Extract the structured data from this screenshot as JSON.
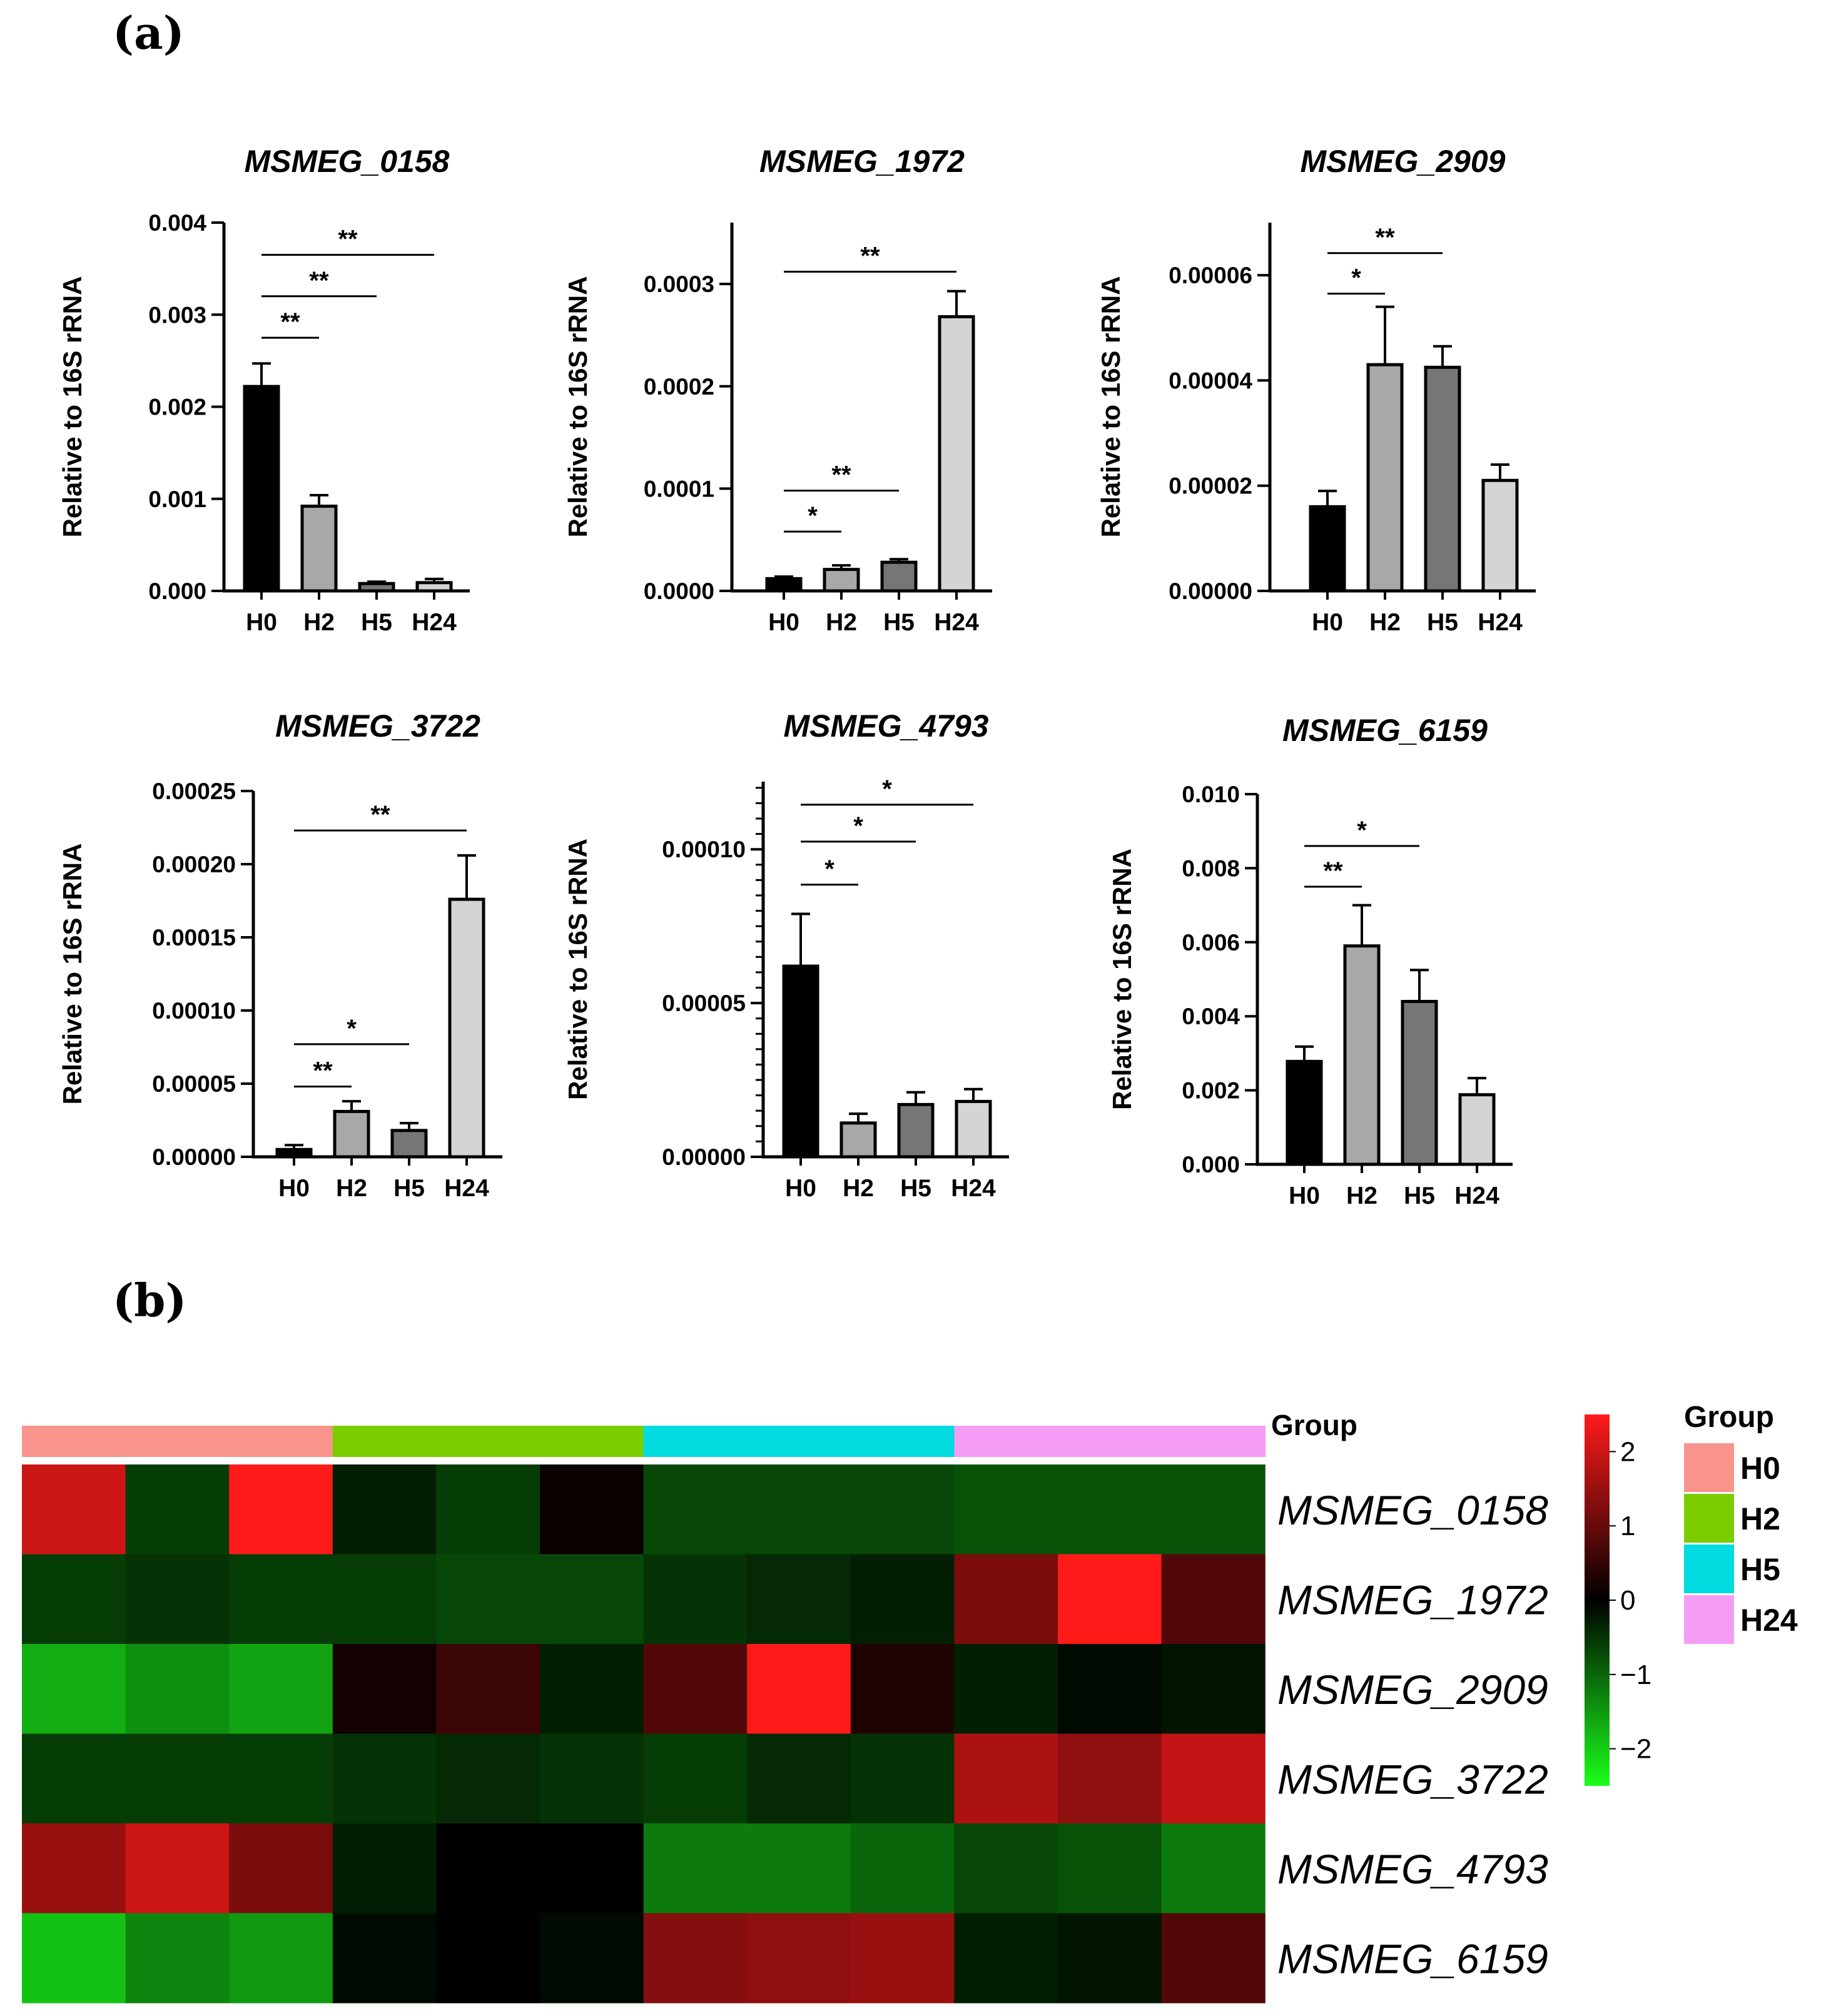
{
  "panel_labels": {
    "a": "(a)",
    "b": "(b)"
  },
  "chart_data": [
    {
      "type": "bar",
      "title": "MSMEG_0158",
      "ylabel": "Relative to 16S rRNA",
      "categories": [
        "H0",
        "H2",
        "H5",
        "H24"
      ],
      "values": [
        0.00222,
        0.00092,
        8e-05,
        9e-05
      ],
      "errors": [
        0.00025,
        0.00012,
        2e-05,
        4e-05
      ],
      "ylim": [
        0,
        0.004
      ],
      "yticks": [
        0,
        0.001,
        0.002,
        0.003,
        0.004
      ],
      "ytick_labels": [
        "0.000",
        "0.001",
        "0.002",
        "0.003",
        "0.004"
      ],
      "minor_ticks": false,
      "bar_colors": [
        "#000000",
        "#a8a8a8",
        "#767676",
        "#d4d4d4"
      ],
      "significance": [
        {
          "from": "H0",
          "to": "H2",
          "label": "**",
          "y": 0.00275
        },
        {
          "from": "H0",
          "to": "H5",
          "label": "**",
          "y": 0.0032
        },
        {
          "from": "H0",
          "to": "H24",
          "label": "**",
          "y": 0.00365
        }
      ]
    },
    {
      "type": "bar",
      "title": "MSMEG_1972",
      "ylabel": "Relative to 16S rRNA",
      "categories": [
        "H0",
        "H2",
        "H5",
        "H24"
      ],
      "values": [
        1.2e-05,
        2.1e-05,
        2.8e-05,
        0.000268
      ],
      "errors": [
        2e-06,
        4e-06,
        3e-06,
        2.5e-05
      ],
      "ylim": [
        0,
        0.00036
      ],
      "yticks": [
        0,
        0.0001,
        0.0002,
        0.0003
      ],
      "ytick_labels": [
        "0.0000",
        "0.0001",
        "0.0002",
        "0.0003"
      ],
      "minor_ticks": false,
      "bar_colors": [
        "#000000",
        "#a8a8a8",
        "#767676",
        "#d4d4d4"
      ],
      "significance": [
        {
          "from": "H0",
          "to": "H2",
          "label": "*",
          "y": 5.8e-05
        },
        {
          "from": "H0",
          "to": "H5",
          "label": "**",
          "y": 9.8e-05
        },
        {
          "from": "H0",
          "to": "H24",
          "label": "**",
          "y": 0.000312
        }
      ]
    },
    {
      "type": "bar",
      "title": "MSMEG_2909",
      "ylabel": "Relative to 16S rRNA",
      "categories": [
        "H0",
        "H2",
        "H5",
        "H24"
      ],
      "values": [
        1.6e-05,
        4.3e-05,
        4.25e-05,
        2.1e-05
      ],
      "errors": [
        3e-06,
        1.1e-05,
        4e-06,
        3e-06
      ],
      "ylim": [
        0,
        7e-05
      ],
      "yticks": [
        0,
        2e-05,
        4e-05,
        6e-05
      ],
      "ytick_labels": [
        "0.00000",
        "0.00002",
        "0.00004",
        "0.00006"
      ],
      "minor_ticks": false,
      "bar_colors": [
        "#000000",
        "#a8a8a8",
        "#767676",
        "#d4d4d4"
      ],
      "significance": [
        {
          "from": "H0",
          "to": "H2",
          "label": "*",
          "y": 5.65e-05
        },
        {
          "from": "H0",
          "to": "H5",
          "label": "**",
          "y": 6.42e-05
        }
      ]
    },
    {
      "type": "bar",
      "title": "MSMEG_3722",
      "ylabel": "Relative to 16S rRNA",
      "categories": [
        "H0",
        "H2",
        "H5",
        "H24"
      ],
      "values": [
        5e-06,
        3.1e-05,
        1.8e-05,
        0.000176
      ],
      "errors": [
        3e-06,
        7e-06,
        5e-06,
        3e-05
      ],
      "ylim": [
        0,
        0.00025
      ],
      "yticks": [
        0,
        5e-05,
        0.0001,
        0.00015,
        0.0002,
        0.00025
      ],
      "ytick_labels": [
        "0.00000",
        "0.00005",
        "0.00010",
        "0.00015",
        "0.00020",
        "0.00025"
      ],
      "minor_ticks": false,
      "bar_colors": [
        "#000000",
        "#a8a8a8",
        "#767676",
        "#d4d4d4"
      ],
      "significance": [
        {
          "from": "H0",
          "to": "H2",
          "label": "**",
          "y": 4.8e-05
        },
        {
          "from": "H0",
          "to": "H5",
          "label": "*",
          "y": 7.7e-05
        },
        {
          "from": "H0",
          "to": "H24",
          "label": "**",
          "y": 0.000223
        }
      ]
    },
    {
      "type": "bar",
      "title": "MSMEG_4793",
      "ylabel": "Relative to 16S rRNA",
      "categories": [
        "H0",
        "H2",
        "H5",
        "H24"
      ],
      "values": [
        6.2e-05,
        1.1e-05,
        1.7e-05,
        1.8e-05
      ],
      "errors": [
        1.7e-05,
        3e-06,
        4e-06,
        4e-06
      ],
      "ylim": [
        0,
        0.000122
      ],
      "yticks": [
        0,
        5e-05,
        0.0001
      ],
      "ytick_labels": [
        "0.00000",
        "0.00005",
        "0.00010"
      ],
      "minor_ticks": true,
      "minor_step": 5e-06,
      "bar_colors": [
        "#000000",
        "#a8a8a8",
        "#767676",
        "#d4d4d4"
      ],
      "significance": [
        {
          "from": "H0",
          "to": "H2",
          "label": "*",
          "y": 8.85e-05
        },
        {
          "from": "H0",
          "to": "H5",
          "label": "*",
          "y": 0.0001025
        },
        {
          "from": "H0",
          "to": "H24",
          "label": "*",
          "y": 0.0001145
        }
      ]
    },
    {
      "type": "bar",
      "title": "MSMEG_6159",
      "ylabel": "Relative to 16S rRNA",
      "categories": [
        "H0",
        "H2",
        "H5",
        "H24"
      ],
      "values": [
        0.00278,
        0.0059,
        0.0044,
        0.00188
      ],
      "errors": [
        0.0004,
        0.0011,
        0.00085,
        0.00045
      ],
      "ylim": [
        0,
        0.01
      ],
      "yticks": [
        0,
        0.002,
        0.004,
        0.006,
        0.008,
        0.01
      ],
      "ytick_labels": [
        "0.000",
        "0.002",
        "0.004",
        "0.006",
        "0.008",
        "0.010"
      ],
      "minor_ticks": false,
      "bar_colors": [
        "#000000",
        "#a8a8a8",
        "#767676",
        "#d4d4d4"
      ],
      "significance": [
        {
          "from": "H0",
          "to": "H2",
          "label": "**",
          "y": 0.0075
        },
        {
          "from": "H0",
          "to": "H5",
          "label": "*",
          "y": 0.0086
        }
      ]
    },
    {
      "type": "heatmap",
      "rows": [
        "MSMEG_0158",
        "MSMEG_1972",
        "MSMEG_2909",
        "MSMEG_3722",
        "MSMEG_4793",
        "MSMEG_6159"
      ],
      "group_annotation_title": "Group",
      "column_groups": [
        "H0",
        "H0",
        "H0",
        "H2",
        "H2",
        "H2",
        "H5",
        "H5",
        "H5",
        "H24",
        "H24",
        "H24"
      ],
      "values": [
        [
          2.0,
          -0.6,
          2.5,
          -0.3,
          -0.6,
          0.1,
          -0.7,
          -0.7,
          -0.7,
          -0.8,
          -0.8,
          -0.8
        ],
        [
          -0.6,
          -0.5,
          -0.6,
          -0.6,
          -0.7,
          -0.7,
          -0.5,
          -0.4,
          -0.3,
          1.2,
          2.5,
          0.8
        ],
        [
          -1.7,
          -1.4,
          -1.6,
          0.2,
          0.6,
          -0.3,
          0.8,
          2.5,
          0.3,
          -0.3,
          -0.1,
          -0.2
        ],
        [
          -0.6,
          -0.6,
          -0.6,
          -0.5,
          -0.4,
          -0.5,
          -0.6,
          -0.4,
          -0.5,
          1.7,
          1.4,
          1.9
        ],
        [
          1.5,
          2.0,
          1.2,
          -0.3,
          0.0,
          0.0,
          -1.2,
          -1.2,
          -1.0,
          -0.7,
          -0.8,
          -1.2
        ],
        [
          -1.9,
          -1.3,
          -1.5,
          -0.1,
          0.0,
          -0.1,
          1.3,
          1.4,
          1.5,
          -0.3,
          -0.2,
          0.8
        ]
      ],
      "color_scale": {
        "min": -2.5,
        "max": 2.5,
        "low": "#1aff1a",
        "mid": "#000000",
        "high": "#ff1a1a"
      },
      "colorbar_ticks": [
        2,
        1,
        0,
        -1,
        -2
      ],
      "colorbar_tick_labels": [
        "2",
        "1",
        "0",
        "−1",
        "−2"
      ],
      "legend": {
        "title": "Group",
        "items": [
          {
            "label": "H0",
            "color": "#f8948c"
          },
          {
            "label": "H2",
            "color": "#7ccd00"
          },
          {
            "label": "H5",
            "color": "#00dcdf"
          },
          {
            "label": "H24",
            "color": "#f59df5"
          }
        ]
      }
    }
  ]
}
